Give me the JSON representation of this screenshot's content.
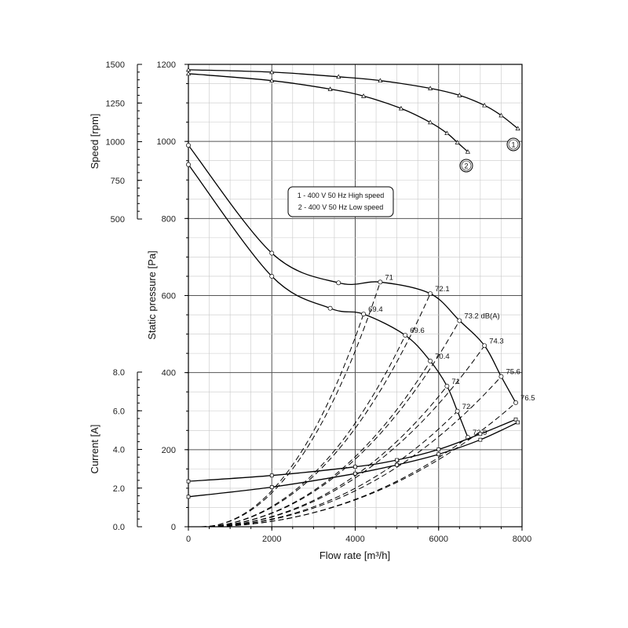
{
  "chart_data": {
    "type": "line",
    "xlabel": "Flow rate [m³/h]",
    "x_ticks": [
      "0",
      "2000",
      "4000",
      "6000",
      "8000"
    ],
    "xlim": [
      0,
      8000
    ],
    "speed_axis": {
      "label": "Speed [rpm]",
      "ylim": [
        500,
        1500
      ],
      "ticks": [
        "500",
        "750",
        "1000",
        "1250",
        "1500"
      ]
    },
    "pressure_axis": {
      "label": "Static pressure [Pa]",
      "ylim": [
        0,
        1200
      ],
      "ticks": [
        "0",
        "200",
        "400",
        "600",
        "800",
        "1000",
        "1200"
      ]
    },
    "current_axis": {
      "label": "Current [A]",
      "ylim": [
        0,
        8
      ],
      "ticks": [
        "0.0",
        "2.0",
        "4.0",
        "6.0",
        "8.0"
      ]
    },
    "legend": [
      "1 - 400 V 50 Hz High speed",
      "2 - 400 V 50 Hz Low speed"
    ],
    "curve_badges": [
      "1",
      "2"
    ],
    "speed_series": [
      {
        "name": "1",
        "points": [
          [
            0,
            1465
          ],
          [
            2000,
            1450
          ],
          [
            3600,
            1420
          ],
          [
            4600,
            1395
          ],
          [
            5800,
            1345
          ],
          [
            6500,
            1300
          ],
          [
            7100,
            1235
          ],
          [
            7500,
            1170
          ],
          [
            7900,
            1085
          ]
        ]
      },
      {
        "name": "2",
        "points": [
          [
            0,
            1440
          ],
          [
            2000,
            1395
          ],
          [
            3400,
            1340
          ],
          [
            4200,
            1295
          ],
          [
            5100,
            1215
          ],
          [
            5800,
            1125
          ],
          [
            6200,
            1055
          ],
          [
            6450,
            995
          ],
          [
            6700,
            935
          ]
        ]
      }
    ],
    "pressure_series": [
      {
        "name": "1",
        "points": [
          [
            0,
            990
          ],
          [
            2000,
            710
          ],
          [
            3600,
            633
          ],
          [
            4600,
            635
          ],
          [
            5800,
            605
          ],
          [
            6500,
            535
          ],
          [
            7100,
            470
          ],
          [
            7500,
            390
          ],
          [
            7850,
            322
          ]
        ]
      },
      {
        "name": "2",
        "points": [
          [
            0,
            940
          ],
          [
            2000,
            650
          ],
          [
            3400,
            567
          ],
          [
            4200,
            552
          ],
          [
            5200,
            497
          ],
          [
            5800,
            430
          ],
          [
            6200,
            365
          ],
          [
            6450,
            300
          ],
          [
            6700,
            232
          ]
        ]
      }
    ],
    "current_series": [
      {
        "name": "1",
        "points": [
          [
            0,
            2.35
          ],
          [
            2000,
            2.65
          ],
          [
            4000,
            3.1
          ],
          [
            5000,
            3.45
          ],
          [
            6000,
            4.0
          ],
          [
            7000,
            4.8
          ],
          [
            7850,
            5.55
          ]
        ]
      },
      {
        "name": "2",
        "points": [
          [
            0,
            1.55
          ],
          [
            2000,
            2.05
          ],
          [
            4000,
            2.75
          ],
          [
            5000,
            3.2
          ],
          [
            6000,
            3.75
          ],
          [
            7000,
            4.5
          ],
          [
            7900,
            5.4
          ]
        ]
      }
    ],
    "sound_lines": [
      {
        "x": 4600,
        "y": 635,
        "label": "71"
      },
      {
        "x": 5800,
        "y": 605,
        "label": "72.1"
      },
      {
        "x": 6500,
        "y": 535,
        "label": "73.2 dB(A)"
      },
      {
        "x": 7100,
        "y": 470,
        "label": "74.3"
      },
      {
        "x": 7500,
        "y": 390,
        "label": "75.6"
      },
      {
        "x": 7850,
        "y": 322,
        "label": "76.5"
      },
      {
        "x": 4200,
        "y": 552,
        "label": "69.4"
      },
      {
        "x": 5200,
        "y": 497,
        "label": "69.6"
      },
      {
        "x": 5800,
        "y": 430,
        "label": "70.4"
      },
      {
        "x": 6200,
        "y": 365,
        "label": "71"
      },
      {
        "x": 6450,
        "y": 300,
        "label": "72"
      },
      {
        "x": 6700,
        "y": 232,
        "label": "72.9"
      }
    ],
    "grid": true
  }
}
